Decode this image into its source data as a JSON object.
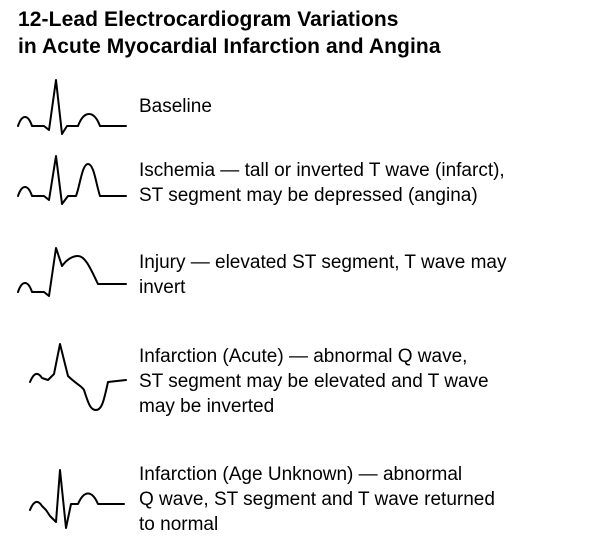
{
  "title": {
    "line1": "12-Lead Electrocardiogram Variations",
    "line2": "in Acute Myocardial Infarction and Angina"
  },
  "items": [
    {
      "icon": "baseline-ecg-wave-icon",
      "lines": [
        "Baseline"
      ]
    },
    {
      "icon": "ischemia-ecg-wave-icon",
      "lines": [
        "Ischemia — tall or inverted T wave (infarct),",
        "ST segment may be depressed (angina)"
      ]
    },
    {
      "icon": "injury-ecg-wave-icon",
      "lines": [
        "Injury — elevated ST segment, T wave may",
        "invert"
      ]
    },
    {
      "icon": "acute-infarction-ecg-wave-icon",
      "lines": [
        "Infarction (Acute) — abnormal Q wave,",
        "ST segment may be elevated and T wave",
        "may be inverted"
      ]
    },
    {
      "icon": "age-unknown-infarction-ecg-wave-icon",
      "lines": [
        "Infarction (Age Unknown) — abnormal",
        "Q wave, ST segment and T wave returned",
        "to normal"
      ]
    }
  ]
}
